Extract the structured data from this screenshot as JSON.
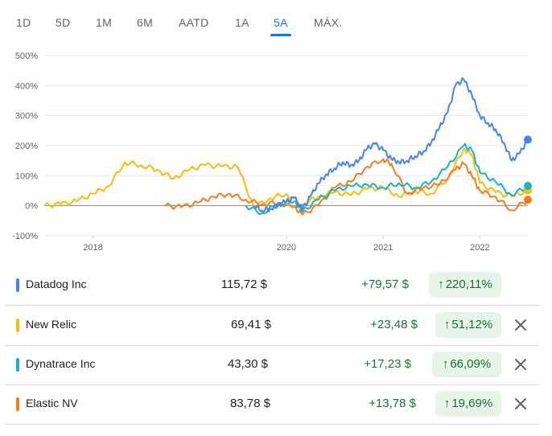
{
  "tabs": [
    {
      "label": "1D",
      "active": false
    },
    {
      "label": "5D",
      "active": false
    },
    {
      "label": "1M",
      "active": false
    },
    {
      "label": "6M",
      "active": false
    },
    {
      "label": "AATD",
      "active": false
    },
    {
      "label": "1A",
      "active": false
    },
    {
      "label": "5A",
      "active": true
    },
    {
      "label": "MÁX.",
      "active": false
    }
  ],
  "colors": {
    "accent": "#1a73e8",
    "positive": "#137333",
    "positive_bg": "#e6f4ea",
    "zero_line": "#80868b"
  },
  "chart_data": {
    "type": "line",
    "title": "",
    "xlabel": "",
    "ylabel": "",
    "x_ticks": [
      "2018",
      "2020",
      "2021",
      "2022"
    ],
    "y_ticks": [
      "500%",
      "400%",
      "300%",
      "200%",
      "100%",
      "0%",
      "-100%"
    ],
    "xlim": [
      "2017-07",
      "2022-07"
    ],
    "ylim": [
      -100,
      500
    ],
    "grid": true,
    "legend": "table below chart",
    "series": [
      {
        "name": "Datadog Inc",
        "color": "#4285f4",
        "x": [
          "2019-09",
          "2019-10",
          "2019-11",
          "2019-12",
          "2020-01",
          "2020-02",
          "2020-03",
          "2020-04",
          "2020-05",
          "2020-06",
          "2020-07",
          "2020-08",
          "2020-09",
          "2020-10",
          "2020-11",
          "2020-12",
          "2021-01",
          "2021-02",
          "2021-03",
          "2021-04",
          "2021-05",
          "2021-06",
          "2021-07",
          "2021-08",
          "2021-09",
          "2021-10",
          "2021-11",
          "2021-12",
          "2022-01",
          "2022-02",
          "2022-03",
          "2022-04",
          "2022-05",
          "2022-06",
          "2022-07"
        ],
        "values": [
          0,
          -15,
          -10,
          2,
          15,
          25,
          -12,
          30,
          75,
          105,
          125,
          145,
          135,
          150,
          190,
          205,
          185,
          155,
          145,
          150,
          165,
          180,
          210,
          260,
          310,
          400,
          420,
          370,
          300,
          275,
          255,
          210,
          150,
          175,
          220
        ]
      },
      {
        "name": "New Relic",
        "color": "#fbbc04",
        "x": [
          "2017-07",
          "2017-09",
          "2017-11",
          "2018-01",
          "2018-03",
          "2018-05",
          "2018-07",
          "2018-09",
          "2018-11",
          "2019-01",
          "2019-03",
          "2019-05",
          "2019-07",
          "2019-09",
          "2019-11",
          "2020-01",
          "2020-03",
          "2020-05",
          "2020-07",
          "2020-09",
          "2020-11",
          "2021-01",
          "2021-03",
          "2021-05",
          "2021-07",
          "2021-09",
          "2021-11",
          "2021-12",
          "2022-01",
          "2022-03",
          "2022-05",
          "2022-07"
        ],
        "values": [
          0,
          5,
          15,
          40,
          65,
          145,
          135,
          120,
          90,
          120,
          135,
          130,
          130,
          -5,
          25,
          40,
          5,
          30,
          45,
          35,
          55,
          60,
          30,
          50,
          40,
          90,
          190,
          170,
          75,
          45,
          30,
          51
        ]
      },
      {
        "name": "Dynatrace Inc",
        "color": "#12b5cb",
        "x": [
          "2019-08",
          "2019-10",
          "2019-12",
          "2020-02",
          "2020-03",
          "2020-05",
          "2020-07",
          "2020-09",
          "2020-11",
          "2021-01",
          "2021-03",
          "2021-05",
          "2021-07",
          "2021-09",
          "2021-11",
          "2021-12",
          "2022-01",
          "2022-03",
          "2022-05",
          "2022-07"
        ],
        "values": [
          0,
          -25,
          5,
          15,
          -20,
          20,
          50,
          65,
          70,
          60,
          75,
          60,
          80,
          130,
          200,
          185,
          110,
          80,
          35,
          66
        ]
      },
      {
        "name": "Elastic NV",
        "color": "#fa7b17",
        "x": [
          "2018-10",
          "2018-12",
          "2019-02",
          "2019-04",
          "2019-06",
          "2019-08",
          "2019-10",
          "2019-12",
          "2020-02",
          "2020-03",
          "2020-05",
          "2020-07",
          "2020-09",
          "2020-11",
          "2021-01",
          "2021-02",
          "2021-04",
          "2021-06",
          "2021-08",
          "2021-10",
          "2021-11",
          "2021-12",
          "2022-01",
          "2022-03",
          "2022-05",
          "2022-07"
        ],
        "values": [
          0,
          -5,
          10,
          30,
          40,
          20,
          5,
          10,
          -5,
          -30,
          0,
          60,
          80,
          130,
          155,
          140,
          40,
          60,
          70,
          120,
          140,
          100,
          50,
          30,
          -15,
          20
        ]
      }
    ]
  },
  "rows": [
    {
      "name": "Datadog Inc",
      "price": "115,72 $",
      "change": "+79,57 $",
      "pct": "220,11%",
      "arrow": "↑",
      "color": "#4285f4",
      "removable": false
    },
    {
      "name": "New Relic",
      "price": "69,41 $",
      "change": "+23,48 $",
      "pct": "51,12%",
      "arrow": "↑",
      "color": "#fbbc04",
      "removable": true
    },
    {
      "name": "Dynatrace Inc",
      "price": "43,30 $",
      "change": "+17,23 $",
      "pct": "66,09%",
      "arrow": "↑",
      "color": "#12b5cb",
      "removable": true
    },
    {
      "name": "Elastic NV",
      "price": "83,78 $",
      "change": "+13,78 $",
      "pct": "19,69%",
      "arrow": "↑",
      "color": "#fa7b17",
      "removable": true
    }
  ]
}
